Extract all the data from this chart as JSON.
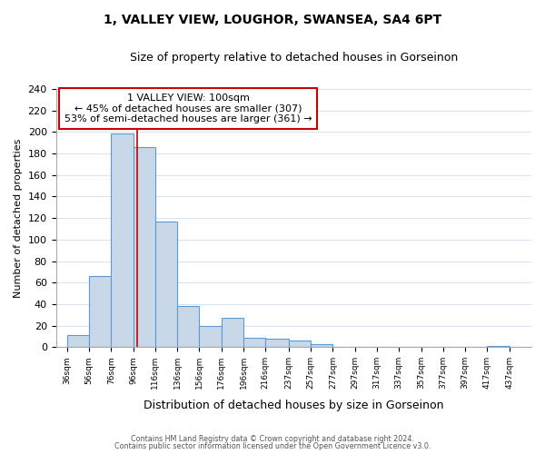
{
  "title": "1, VALLEY VIEW, LOUGHOR, SWANSEA, SA4 6PT",
  "subtitle": "Size of property relative to detached houses in Gorseinon",
  "xlabel": "Distribution of detached houses by size in Gorseinon",
  "ylabel": "Number of detached properties",
  "bar_left_edges": [
    36,
    56,
    76,
    96,
    116,
    136,
    156,
    176,
    196,
    216,
    237,
    257,
    277,
    297,
    317,
    337,
    357,
    377,
    397,
    417
  ],
  "bar_widths": [
    20,
    20,
    20,
    20,
    20,
    20,
    20,
    20,
    20,
    21,
    20,
    20,
    20,
    20,
    20,
    20,
    20,
    20,
    20,
    20
  ],
  "bar_heights": [
    11,
    66,
    199,
    186,
    117,
    38,
    20,
    27,
    9,
    8,
    6,
    3,
    0,
    0,
    0,
    0,
    0,
    0,
    0,
    1
  ],
  "bar_color": "#c8d8e8",
  "bar_edge_color": "#5b9bd5",
  "tick_labels": [
    "36sqm",
    "56sqm",
    "76sqm",
    "96sqm",
    "116sqm",
    "136sqm",
    "156sqm",
    "176sqm",
    "196sqm",
    "216sqm",
    "237sqm",
    "257sqm",
    "277sqm",
    "297sqm",
    "317sqm",
    "337sqm",
    "357sqm",
    "377sqm",
    "397sqm",
    "417sqm",
    "437sqm"
  ],
  "ylim": [
    0,
    240
  ],
  "yticks": [
    0,
    20,
    40,
    60,
    80,
    100,
    120,
    140,
    160,
    180,
    200,
    220,
    240
  ],
  "property_line_x": 100,
  "property_line_color": "#cc0000",
  "annotation_line1": "1 VALLEY VIEW: 100sqm",
  "annotation_line2": "← 45% of detached houses are smaller (307)",
  "annotation_line3": "53% of semi-detached houses are larger (361) →",
  "footer_line1": "Contains HM Land Registry data © Crown copyright and database right 2024.",
  "footer_line2": "Contains public sector information licensed under the Open Government Licence v3.0.",
  "background_color": "#ffffff",
  "grid_color": "#d8e4f0",
  "xlim_left": 26,
  "xlim_right": 457
}
